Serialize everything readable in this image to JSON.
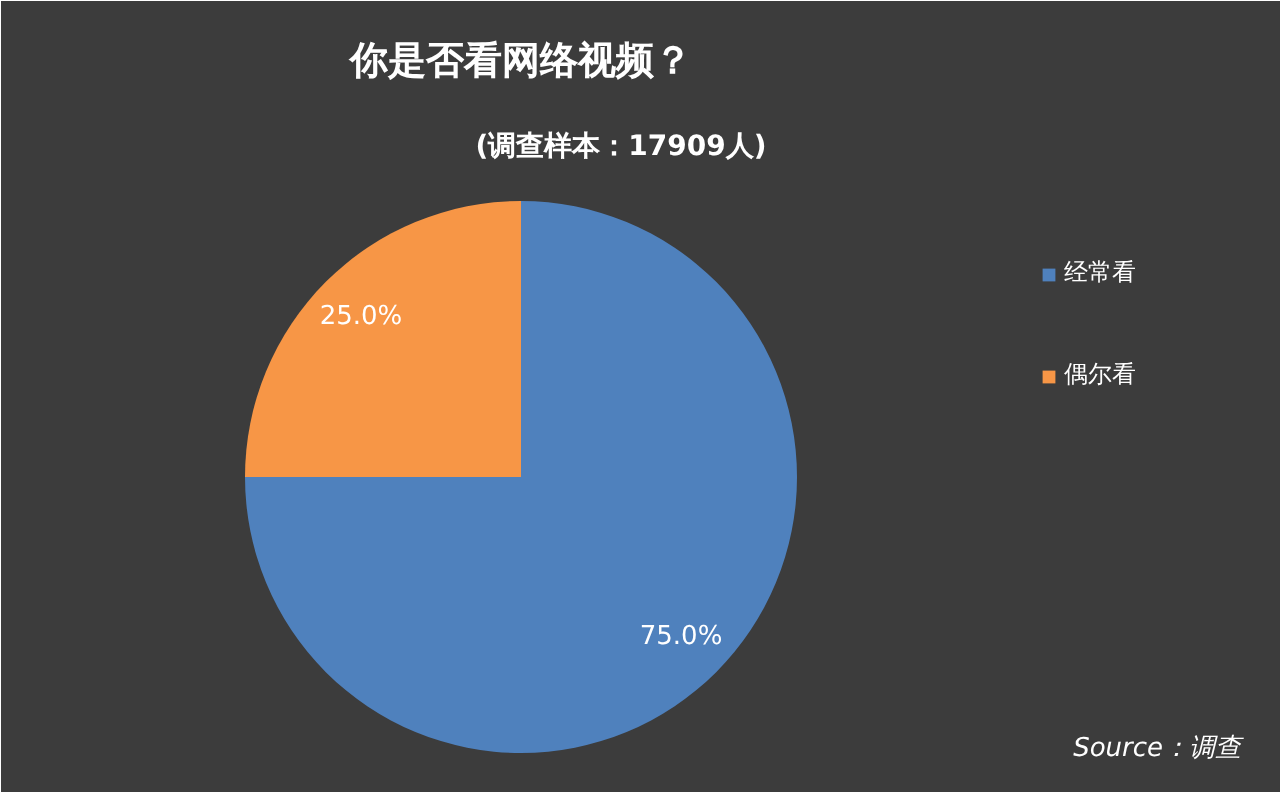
{
  "chart_data": {
    "type": "pie",
    "title": "你是否看网络视频？",
    "subtitle": "(调查样本：17909人)",
    "categories": [
      "经常看",
      "偶尔看"
    ],
    "values": [
      75,
      25
    ],
    "colors": [
      "#4f81bd",
      "#f79646"
    ],
    "value_labels": [
      "75.0%",
      "25.0%"
    ],
    "legend": "right",
    "annotations": [
      "Source：调查"
    ]
  }
}
